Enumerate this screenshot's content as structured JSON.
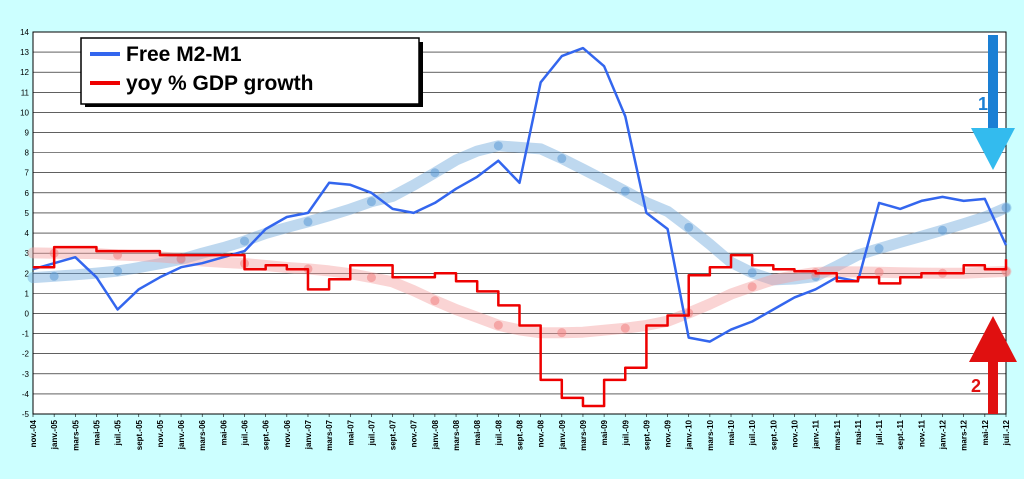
{
  "chart_data": {
    "type": "line",
    "title": "",
    "xlabel": "",
    "ylabel": "",
    "ylim": [
      -5,
      14
    ],
    "yticks": [
      -5,
      -4,
      -3,
      -2,
      -1,
      0,
      1,
      2,
      3,
      4,
      5,
      6,
      7,
      8,
      9,
      10,
      11,
      12,
      13,
      14
    ],
    "grid": true,
    "legend_position": "top-left",
    "x_tick_labels": [
      "nov.-04",
      "janv.-05",
      "mars-05",
      "mai-05",
      "juil.-05",
      "sept.-05",
      "nov.-05",
      "janv.-06",
      "mars-06",
      "mai-06",
      "juil.-06",
      "sept.-06",
      "nov.-06",
      "janv.-07",
      "mars-07",
      "mai-07",
      "juil.-07",
      "sept.-07",
      "nov.-07",
      "janv.-08",
      "mars-08",
      "mai-08",
      "juil.-08",
      "sept.-08",
      "nov.-08",
      "janv.-09",
      "mars-09",
      "mai-09",
      "juil.-09",
      "sept.-09",
      "nov.-09",
      "janv.-10",
      "mars-10",
      "mai-10",
      "juil.-10",
      "sept.-10",
      "nov.-10",
      "janv.-11",
      "mars-11",
      "mai-11",
      "juil.-11",
      "sept.-11",
      "nov.-11",
      "janv.-12",
      "mars-12",
      "mai-12",
      "juil.-12"
    ],
    "series": [
      {
        "name": "Free M2-M1",
        "color": "#3366ee",
        "points": [
          [
            0,
            2.2
          ],
          [
            1,
            2.5
          ],
          [
            2,
            2.8
          ],
          [
            3,
            1.8
          ],
          [
            4,
            0.2
          ],
          [
            5,
            1.2
          ],
          [
            6,
            1.8
          ],
          [
            7,
            2.3
          ],
          [
            8,
            2.5
          ],
          [
            9,
            2.8
          ],
          [
            10,
            3.1
          ],
          [
            11,
            4.2
          ],
          [
            12,
            4.8
          ],
          [
            13,
            5.0
          ],
          [
            14,
            6.5
          ],
          [
            15,
            6.4
          ],
          [
            16,
            6.0
          ],
          [
            17,
            5.2
          ],
          [
            18,
            5.0
          ],
          [
            19,
            5.5
          ],
          [
            20,
            6.2
          ],
          [
            21,
            6.8
          ],
          [
            22,
            7.6
          ],
          [
            23,
            6.5
          ],
          [
            24,
            11.5
          ],
          [
            25,
            12.8
          ],
          [
            26,
            13.2
          ],
          [
            27,
            12.3
          ],
          [
            28,
            9.8
          ],
          [
            29,
            5.0
          ],
          [
            30,
            4.2
          ],
          [
            31,
            -1.2
          ],
          [
            32,
            -1.4
          ],
          [
            33,
            -0.8
          ],
          [
            34,
            -0.4
          ],
          [
            35,
            0.2
          ],
          [
            36,
            0.8
          ],
          [
            37,
            1.2
          ],
          [
            38,
            1.8
          ],
          [
            39,
            1.6
          ],
          [
            40,
            5.5
          ],
          [
            41,
            5.2
          ],
          [
            42,
            5.6
          ],
          [
            43,
            5.8
          ],
          [
            44,
            5.6
          ],
          [
            45,
            5.7
          ],
          [
            46,
            3.4
          ]
        ]
      },
      {
        "name": "yoy % GDP growth",
        "color": "#ee0000",
        "points": [
          [
            0,
            2.3
          ],
          [
            1,
            3.3
          ],
          [
            2,
            3.3
          ],
          [
            3,
            3.1
          ],
          [
            4,
            3.1
          ],
          [
            5,
            3.1
          ],
          [
            6,
            2.9
          ],
          [
            7,
            2.9
          ],
          [
            8,
            2.9
          ],
          [
            9,
            2.9
          ],
          [
            10,
            2.2
          ],
          [
            11,
            2.4
          ],
          [
            12,
            2.2
          ],
          [
            13,
            1.2
          ],
          [
            14,
            1.7
          ],
          [
            15,
            2.4
          ],
          [
            16,
            2.4
          ],
          [
            17,
            1.8
          ],
          [
            18,
            1.8
          ],
          [
            19,
            2.0
          ],
          [
            20,
            1.6
          ],
          [
            21,
            1.1
          ],
          [
            22,
            0.4
          ],
          [
            23,
            -0.6
          ],
          [
            24,
            -3.3
          ],
          [
            25,
            -4.2
          ],
          [
            26,
            -4.6
          ],
          [
            27,
            -3.3
          ],
          [
            28,
            -2.7
          ],
          [
            29,
            -0.6
          ],
          [
            30,
            -0.1
          ],
          [
            31,
            1.9
          ],
          [
            32,
            2.3
          ],
          [
            33,
            2.9
          ],
          [
            34,
            2.4
          ],
          [
            35,
            2.2
          ],
          [
            36,
            2.1
          ],
          [
            37,
            2.0
          ],
          [
            38,
            1.6
          ],
          [
            39,
            1.8
          ],
          [
            40,
            1.5
          ],
          [
            41,
            1.8
          ],
          [
            42,
            2.0
          ],
          [
            43,
            2.0
          ],
          [
            44,
            2.4
          ],
          [
            45,
            2.2
          ],
          [
            46,
            2.7
          ]
        ]
      }
    ],
    "annotations": [
      {
        "text": "1",
        "color": "#1a7fd4",
        "direction": "down"
      },
      {
        "text": "2",
        "color": "#e01010",
        "direction": "up"
      }
    ]
  }
}
